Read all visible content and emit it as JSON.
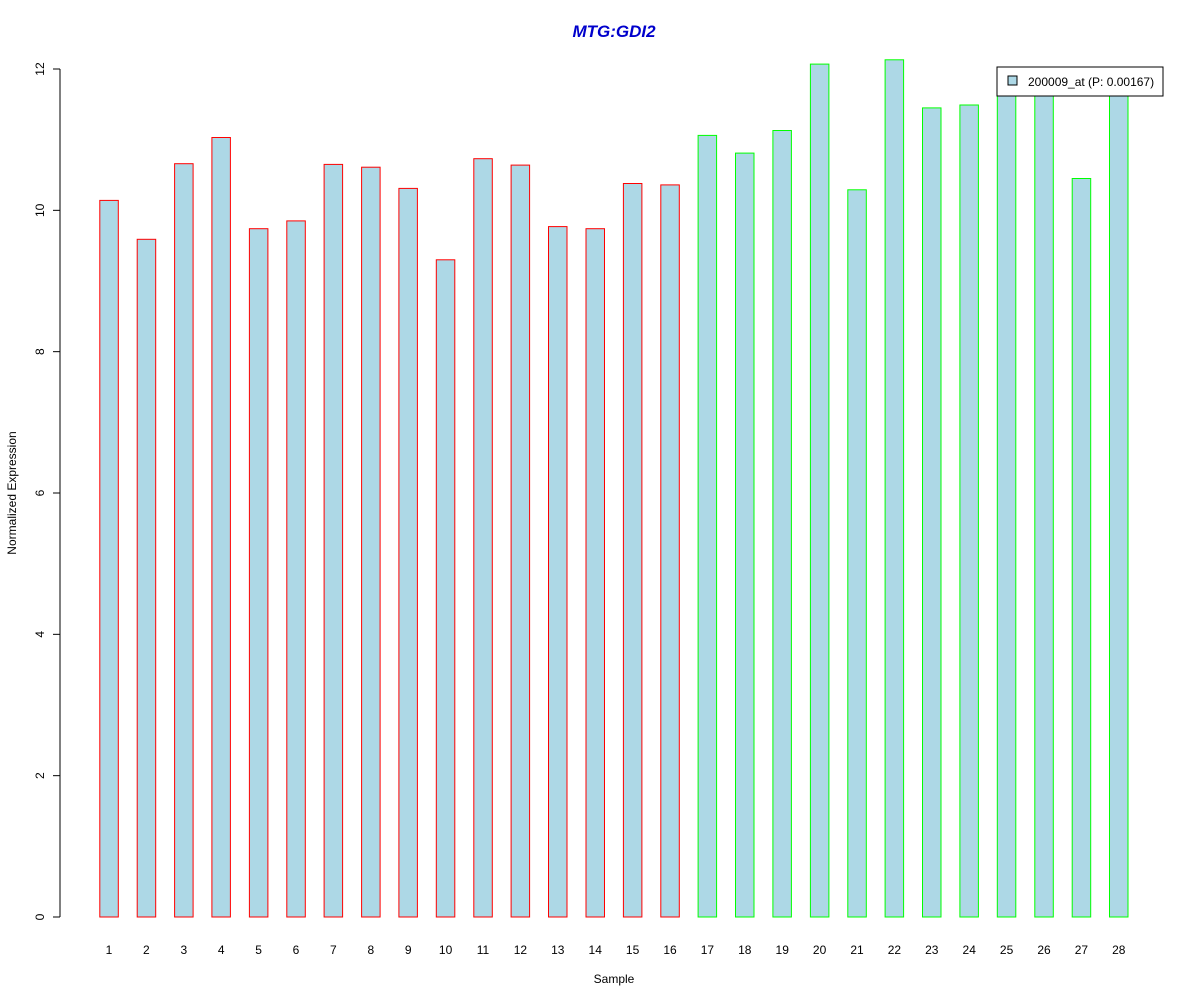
{
  "chart_data": {
    "type": "bar",
    "title": "MTG:GDI2",
    "xlabel": "Sample",
    "ylabel": "Normalized Expression",
    "ylim": [
      0,
      12
    ],
    "yticks": [
      0,
      2,
      4,
      6,
      8,
      10,
      12
    ],
    "grid": false,
    "legend_position": "top-right",
    "categories": [
      "1",
      "2",
      "3",
      "4",
      "5",
      "6",
      "7",
      "8",
      "9",
      "10",
      "11",
      "12",
      "13",
      "14",
      "15",
      "16",
      "17",
      "18",
      "19",
      "20",
      "21",
      "22",
      "23",
      "24",
      "25",
      "26",
      "27",
      "28"
    ],
    "series": [
      {
        "name": "200009_at (P: 0.00167)",
        "values": [
          10.14,
          9.59,
          10.66,
          11.03,
          9.74,
          9.85,
          10.65,
          10.61,
          10.31,
          9.3,
          10.73,
          10.64,
          9.77,
          9.74,
          10.38,
          10.36,
          11.06,
          10.81,
          11.13,
          12.07,
          10.29,
          12.13,
          11.45,
          11.49,
          11.75,
          11.8,
          10.45,
          11.75
        ],
        "group": [
          "a",
          "a",
          "a",
          "a",
          "a",
          "a",
          "a",
          "a",
          "a",
          "a",
          "a",
          "a",
          "a",
          "a",
          "a",
          "a",
          "b",
          "b",
          "b",
          "b",
          "b",
          "b",
          "b",
          "b",
          "b",
          "b",
          "b",
          "b"
        ]
      }
    ],
    "colors": {
      "bar_fill": "#add8e6",
      "group_a_border": "#ff0000",
      "group_b_border": "#00ff00",
      "title": "#0000cc",
      "axis": "#000000"
    }
  }
}
